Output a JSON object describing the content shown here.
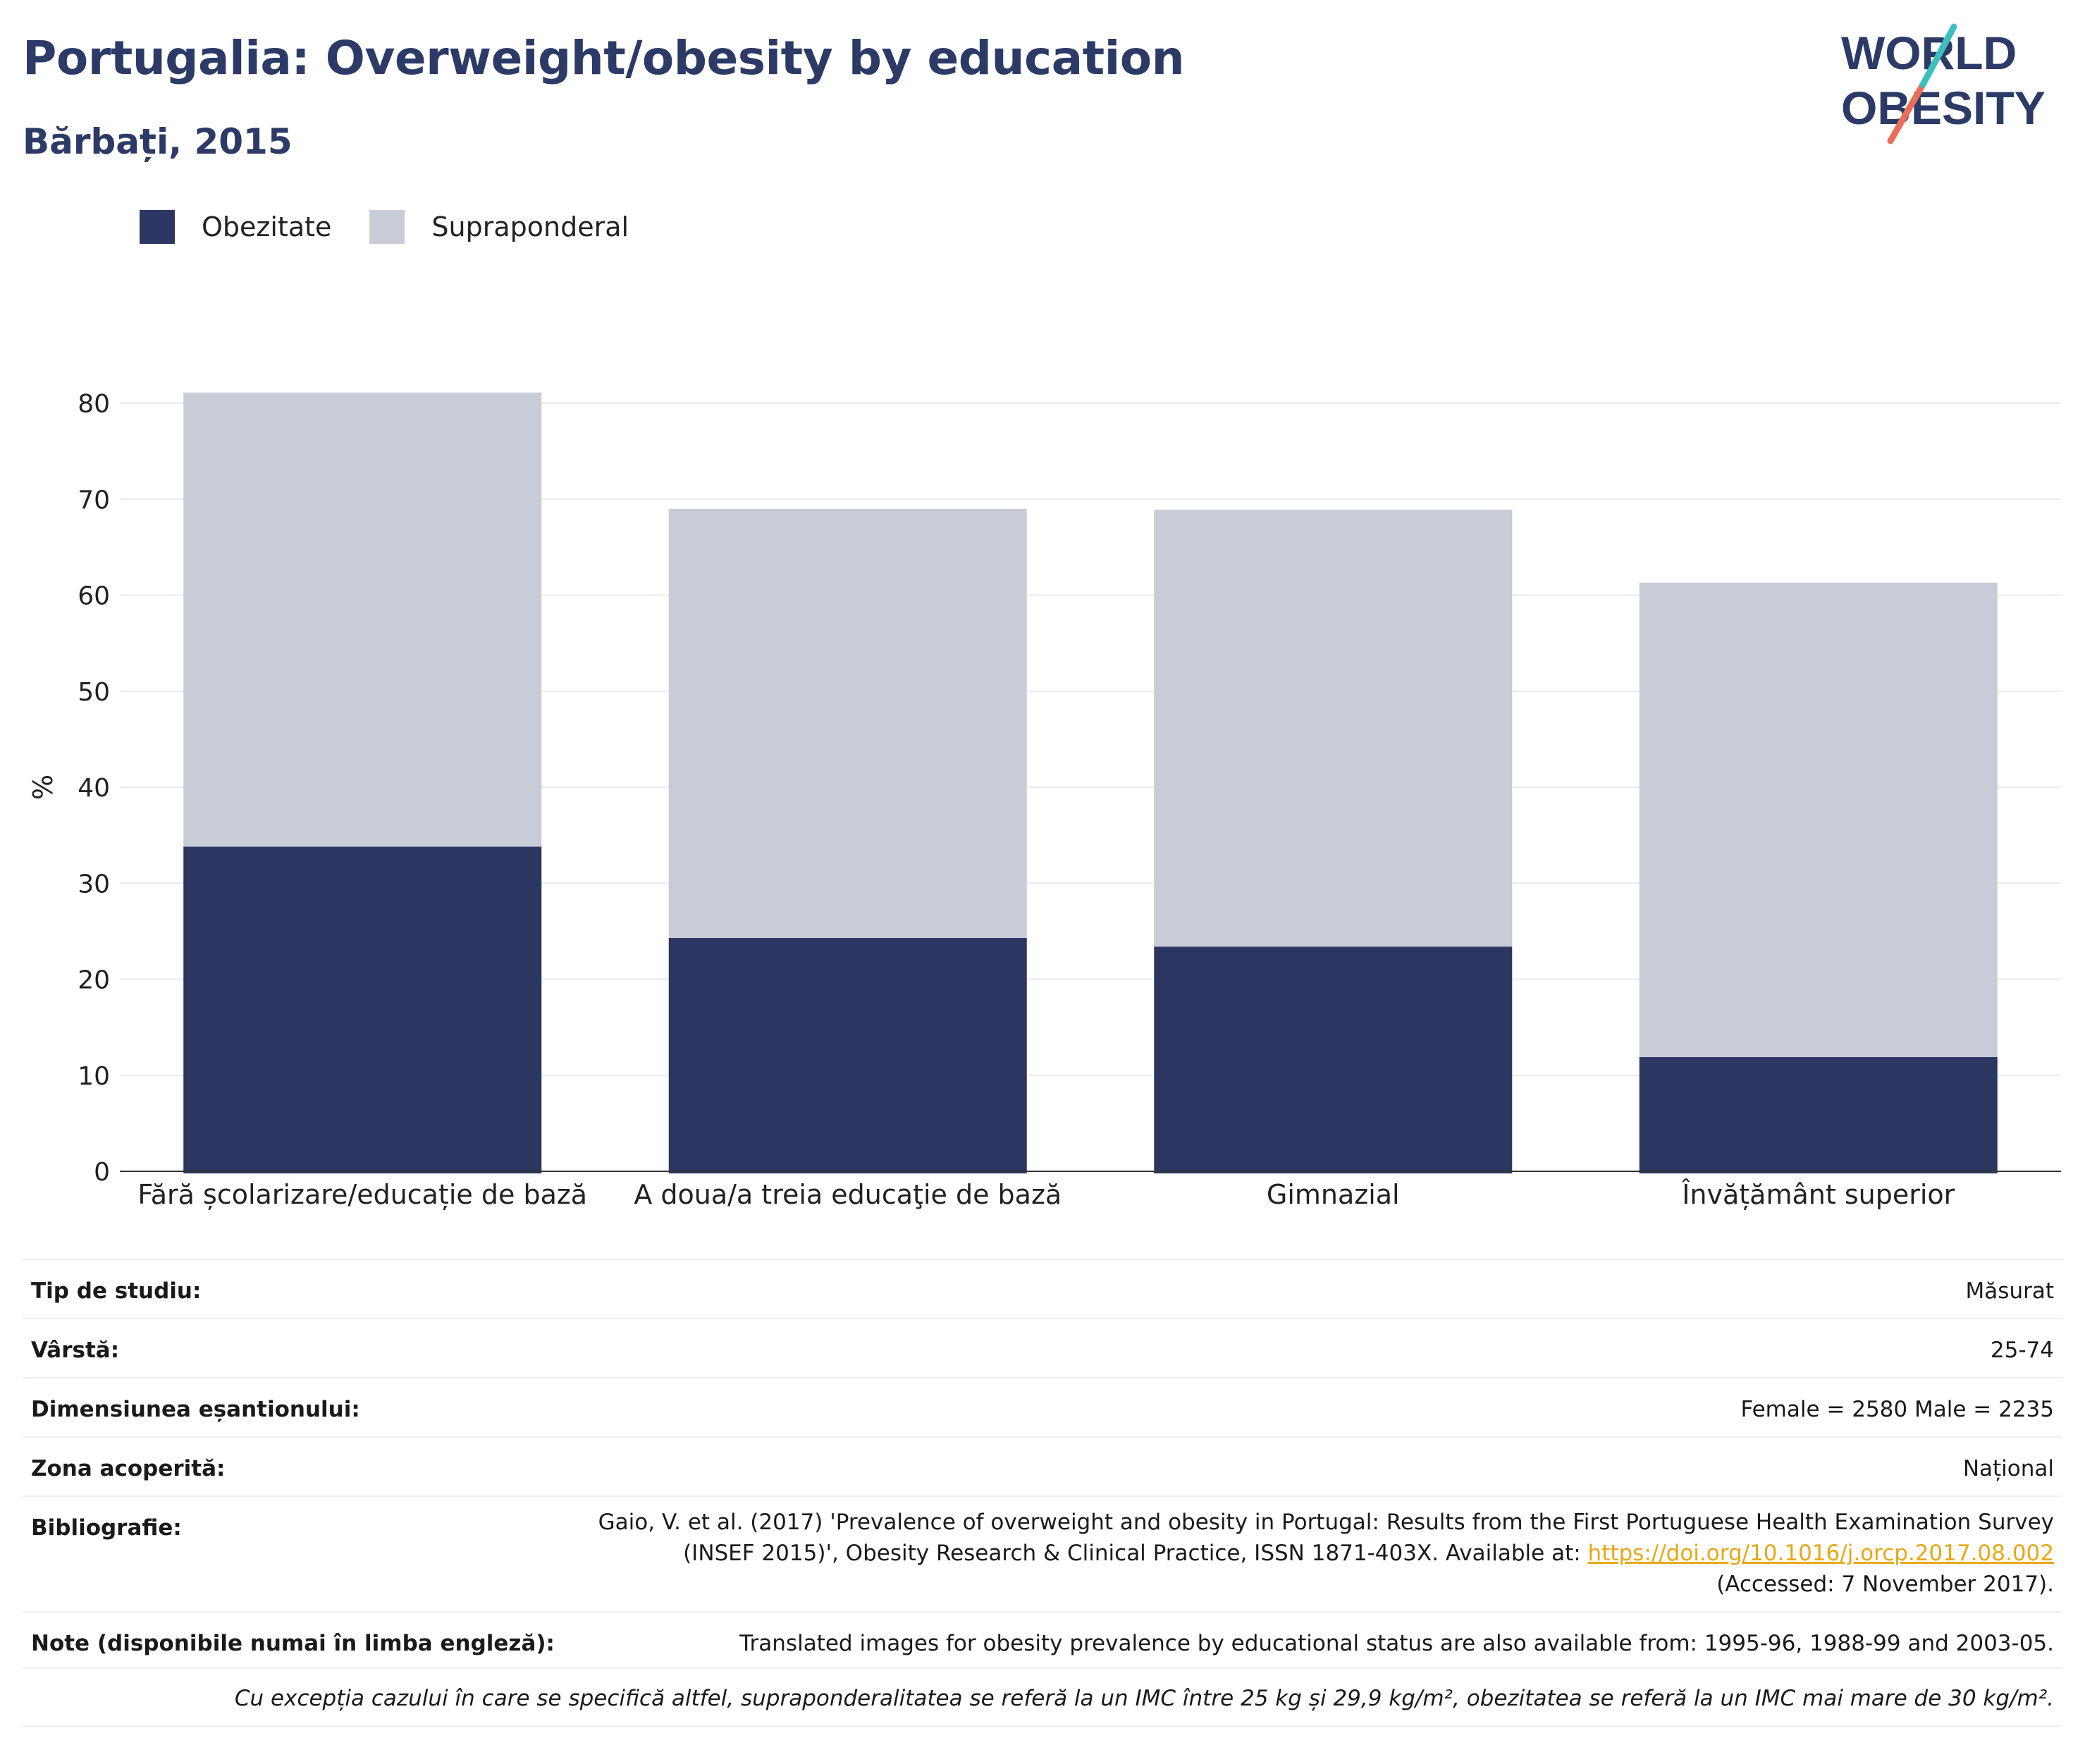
{
  "header": {
    "title": "Portugalia: Overweight/obesity by education",
    "subtitle": "Bărbați, 2015",
    "logo_line1": "WORLD",
    "logo_line2": "OBESITY"
  },
  "colors": {
    "obesity": "#2b3663",
    "overweight": "#c9cbd7",
    "title": "#2b3a67",
    "link": "#e6a817",
    "logo_teal": "#3dbfbf",
    "logo_coral": "#e8705a"
  },
  "legend": [
    {
      "label": "Obezitate",
      "color": "#2b3663"
    },
    {
      "label": "Supraponderal",
      "color": "#c9cbd7"
    }
  ],
  "chart_data": {
    "type": "bar",
    "stacked": true,
    "categories": [
      "Fără școlarizare/educație de bază",
      "A doua/a treia educaţie de bază",
      "Gimnazial",
      "Învățământ superior"
    ],
    "series": [
      {
        "name": "Obezitate",
        "values": [
          33.8,
          24.3,
          23.4,
          11.9
        ]
      },
      {
        "name": "Supraponderal",
        "values": [
          47.3,
          44.7,
          45.5,
          49.4
        ]
      }
    ],
    "ylabel": "%",
    "ylim": [
      0,
      80
    ],
    "yticks": [
      0,
      10,
      20,
      30,
      40,
      50,
      60,
      70,
      80
    ],
    "grid": true
  },
  "info": {
    "study_type_label": "Tip de studiu:",
    "study_type_value": "Măsurat",
    "age_label": "Vârstă:",
    "age_value": "25-74",
    "sample_label": "Dimensiunea eșantionului:",
    "sample_value": "Female = 2580 Male = 2235",
    "area_label": "Zona acoperită:",
    "area_value": "Național",
    "biblio_label": "Bibliografie:",
    "biblio_line1": "Gaio, V. et al. (2017) 'Prevalence of overweight and obesity in Portugal: Results from the First Portuguese Health Examination Survey",
    "biblio_line2": "(INSEF 2015)', Obesity Research & Clinical Practice, ISSN 1871-403X. Available at:",
    "biblio_link": "https://doi.org/10.1016/j.orcp.2017.08.002",
    "biblio_line3": "(Accessed: 7 November 2017).",
    "notes_label": "Note (disponibile numai în limba engleză):",
    "notes_value": "Translated images for obesity prevalence by educational status are also available from: 1995-96, 1988-99 and 2003-05.",
    "footnote": "Cu excepția cazului în care se specifică altfel, supraponderalitatea se referă la un IMC între 25 kg și 29,9 kg/m², obezitatea se referă la un IMC mai mare de 30 kg/m²."
  }
}
